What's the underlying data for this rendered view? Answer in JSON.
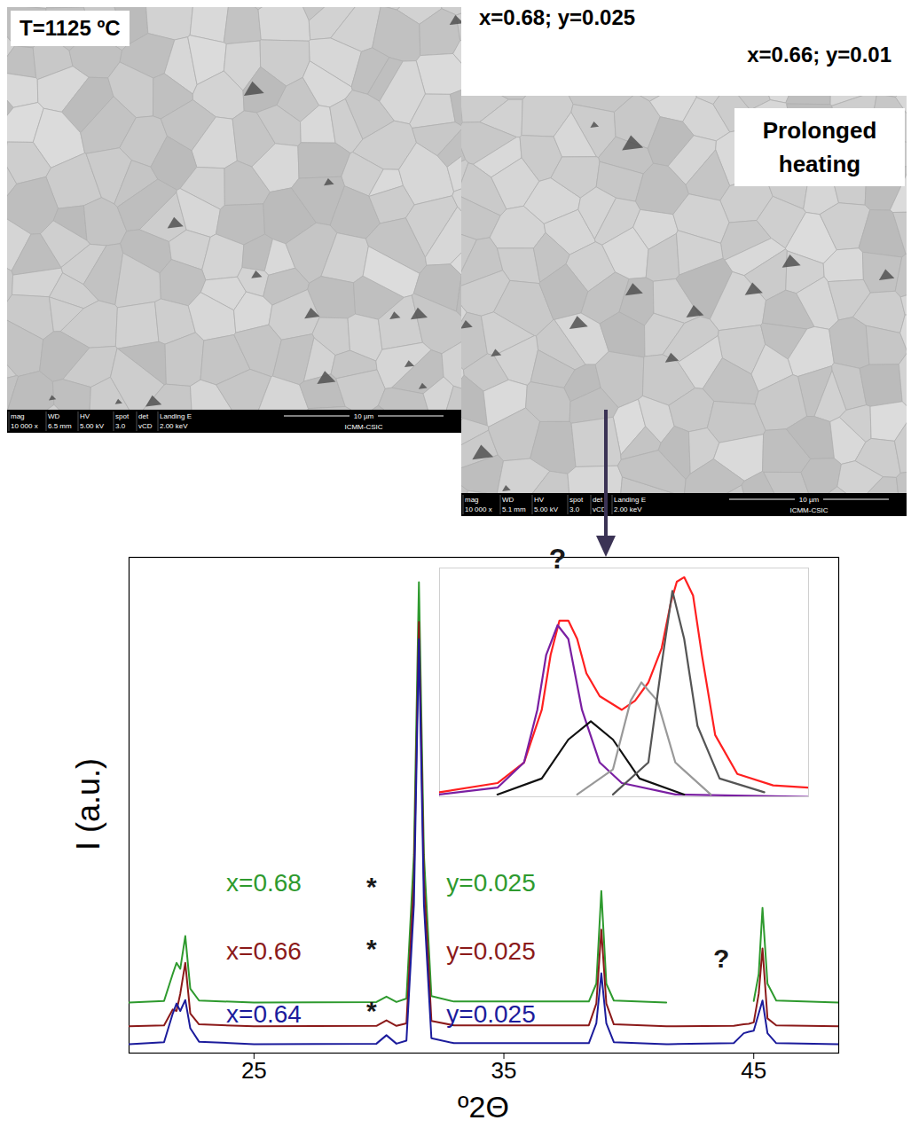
{
  "figure": {
    "images": [
      {
        "labels": [
          "T=1125 ºC"
        ],
        "info": {
          "headers": [
            "mag",
            "WD",
            "HV",
            "spot",
            "det",
            "Landing E"
          ],
          "values": [
            "10 000 x",
            "6.5 mm",
            "5.00 kV",
            "3.0",
            "vCD",
            "2.00 keV"
          ],
          "scale": "10 µm",
          "institution": "ICMM-CSIC"
        }
      },
      {
        "labels": [
          "x=0.68; y=0.025",
          "x=0.66; y=0.01",
          "Prolonged heating"
        ],
        "info": {
          "headers": [
            "mag",
            "WD",
            "HV",
            "spot",
            "det",
            "Landing E"
          ],
          "values": [
            "10 000 x",
            "5.1 mm",
            "5.00 kV",
            "3.0",
            "vCD",
            "2.00 keV"
          ],
          "scale": "10 µm",
          "institution": "ICMM-CSIC"
        }
      }
    ]
  },
  "chart_data": [
    {
      "type": "line",
      "xlabel": "º2Θ",
      "ylabel": "I (a.u.)",
      "xlim": [
        20,
        48.4
      ],
      "ylim": [
        0,
        100
      ],
      "xticks": [
        25,
        35,
        45
      ],
      "yticks": [],
      "tick_labels": "x",
      "grid": false,
      "x": [
        20,
        21.4,
        21.75,
        21.9,
        22.05,
        22.25,
        22.45,
        22.8,
        25,
        29.9,
        30.3,
        30.7,
        31.1,
        31.4,
        31.6,
        31.8,
        32.1,
        33,
        38.4,
        38.7,
        38.9,
        39.1,
        39.4,
        41.5,
        41.6,
        44.2,
        44.6,
        44.8,
        45.0,
        45.2,
        45.35,
        45.55,
        45.9,
        48.4
      ],
      "series": [
        {
          "name": "x=0.68",
          "label": "y=0.025",
          "color": "#2e9a2e",
          "values": [
            10.2,
            10.5,
            16,
            18.2,
            17,
            23.6,
            13,
            10.6,
            10.2,
            10.3,
            11.4,
            10.3,
            11,
            40,
            95,
            40,
            11.5,
            10.4,
            10.4,
            14,
            32.7,
            14,
            10.6,
            10.2,
            null,
            null,
            null,
            null,
            10.5,
            16,
            29.3,
            14,
            10.6,
            10.2
          ]
        },
        {
          "name": "x=0.66",
          "label": "y=0.025",
          "color": "#8b1a1a",
          "values": [
            5.4,
            5.6,
            8.8,
            8.5,
            12,
            18.2,
            8,
            5.8,
            5.4,
            5.5,
            6.6,
            5.5,
            6,
            35,
            87,
            35,
            6.5,
            5.6,
            5.6,
            10,
            24.9,
            10,
            5.8,
            5.4,
            5.4,
            5.5,
            5.8,
            5.9,
            6.2,
            12,
            21.1,
            7,
            5.6,
            5.4
          ]
        },
        {
          "name": "x=0.64",
          "label": "y=0.025",
          "color": "#1c1c9c",
          "values": [
            1.8,
            2.2,
            8,
            10,
            8.5,
            10.7,
            5,
            2.3,
            1.8,
            1.9,
            3.6,
            1.9,
            2.5,
            30,
            83.5,
            30,
            3,
            2,
            2,
            6,
            16.1,
            6,
            2.2,
            1.8,
            1.8,
            2,
            4,
            4.3,
            4.5,
            8,
            10.6,
            4,
            2,
            1.8
          ]
        }
      ],
      "annotations": [
        {
          "text": "*",
          "x": 29.7,
          "y": 33.5
        },
        {
          "text": "*",
          "x": 29.7,
          "y": 21
        },
        {
          "text": "*",
          "x": 29.7,
          "y": 8.4
        },
        {
          "text": "?",
          "x": 43.7,
          "y": 19
        }
      ]
    },
    {
      "type": "line",
      "xlim": [
        0,
        100
      ],
      "ylim": [
        0,
        100
      ],
      "xticks": [],
      "yticks": [],
      "tick_labels": false,
      "series": [
        {
          "color": "#ff2020",
          "x": [
            0,
            15.7,
            22.9,
            27.7,
            30.1,
            32.5,
            34.9,
            37.3,
            39.8,
            43.4,
            49.4,
            53,
            56.6,
            60.2,
            62.7,
            64.3,
            66.3,
            68.7,
            71.1,
            74.7,
            80.7,
            90.4,
            100
          ],
          "values": [
            2,
            6,
            15,
            38,
            62,
            77,
            77,
            69,
            54,
            44,
            38,
            42,
            50,
            65,
            85,
            94,
            96,
            88,
            62,
            27,
            10,
            5,
            4
          ]
        },
        {
          "color": "#7a1fa2",
          "x": [
            0,
            15.7,
            22.9,
            26.5,
            28.9,
            32,
            34.9,
            38.6,
            43.4,
            49.4,
            63.9,
            100
          ],
          "values": [
            1,
            4,
            15,
            38,
            62,
            75,
            69,
            38,
            15,
            6,
            1,
            0
          ]
        },
        {
          "color": "#111111",
          "x": [
            15.7,
            27.7,
            34.9,
            41,
            47,
            54.2,
            66.3
          ],
          "values": [
            1,
            8,
            25,
            33,
            25,
            8,
            1
          ]
        },
        {
          "color": "#999999",
          "x": [
            37.3,
            47,
            51.8,
            54.7,
            59,
            63.9,
            73.5
          ],
          "values": [
            1,
            12,
            42,
            50,
            42,
            15,
            1
          ]
        },
        {
          "color": "#555555",
          "x": [
            47,
            56.6,
            60.2,
            63.1,
            66.3,
            69.9,
            75.9,
            88
          ],
          "values": [
            1,
            15,
            58,
            90,
            69,
            31,
            8,
            2
          ]
        }
      ],
      "annotations": [
        {
          "text": "?",
          "x": 32,
          "y": 100
        }
      ]
    }
  ]
}
